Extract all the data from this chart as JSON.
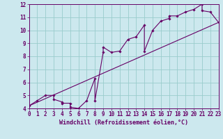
{
  "xlabel": "Windchill (Refroidissement éolien,°C)",
  "xlim": [
    0,
    23
  ],
  "ylim": [
    4,
    12
  ],
  "xticks": [
    0,
    1,
    2,
    3,
    4,
    5,
    6,
    7,
    8,
    9,
    10,
    11,
    12,
    13,
    14,
    15,
    16,
    17,
    18,
    19,
    20,
    21,
    22,
    23
  ],
  "yticks": [
    4,
    5,
    6,
    7,
    8,
    9,
    10,
    11,
    12
  ],
  "bg_color": "#cce8ee",
  "line_color": "#660066",
  "grid_color": "#99cccc",
  "straight_line_x": [
    0,
    23
  ],
  "straight_line_y": [
    4.2,
    10.6
  ],
  "data_x": [
    0,
    1,
    2,
    3,
    3,
    4,
    4,
    5,
    5,
    6,
    7,
    8,
    8,
    9,
    9,
    10,
    11,
    12,
    13,
    14,
    14,
    15,
    16,
    17,
    17,
    18,
    19,
    20,
    21,
    21,
    22,
    23
  ],
  "data_y": [
    4.2,
    4.6,
    5.0,
    5.0,
    4.7,
    4.5,
    4.4,
    4.4,
    4.1,
    4.0,
    4.6,
    6.3,
    4.6,
    8.3,
    8.7,
    8.3,
    8.4,
    9.3,
    9.5,
    10.4,
    8.4,
    10.0,
    10.7,
    10.9,
    11.1,
    11.1,
    11.4,
    11.6,
    12.0,
    11.5,
    11.4,
    10.6
  ],
  "tick_fontsize": 5.5,
  "xlabel_fontsize": 6.0
}
